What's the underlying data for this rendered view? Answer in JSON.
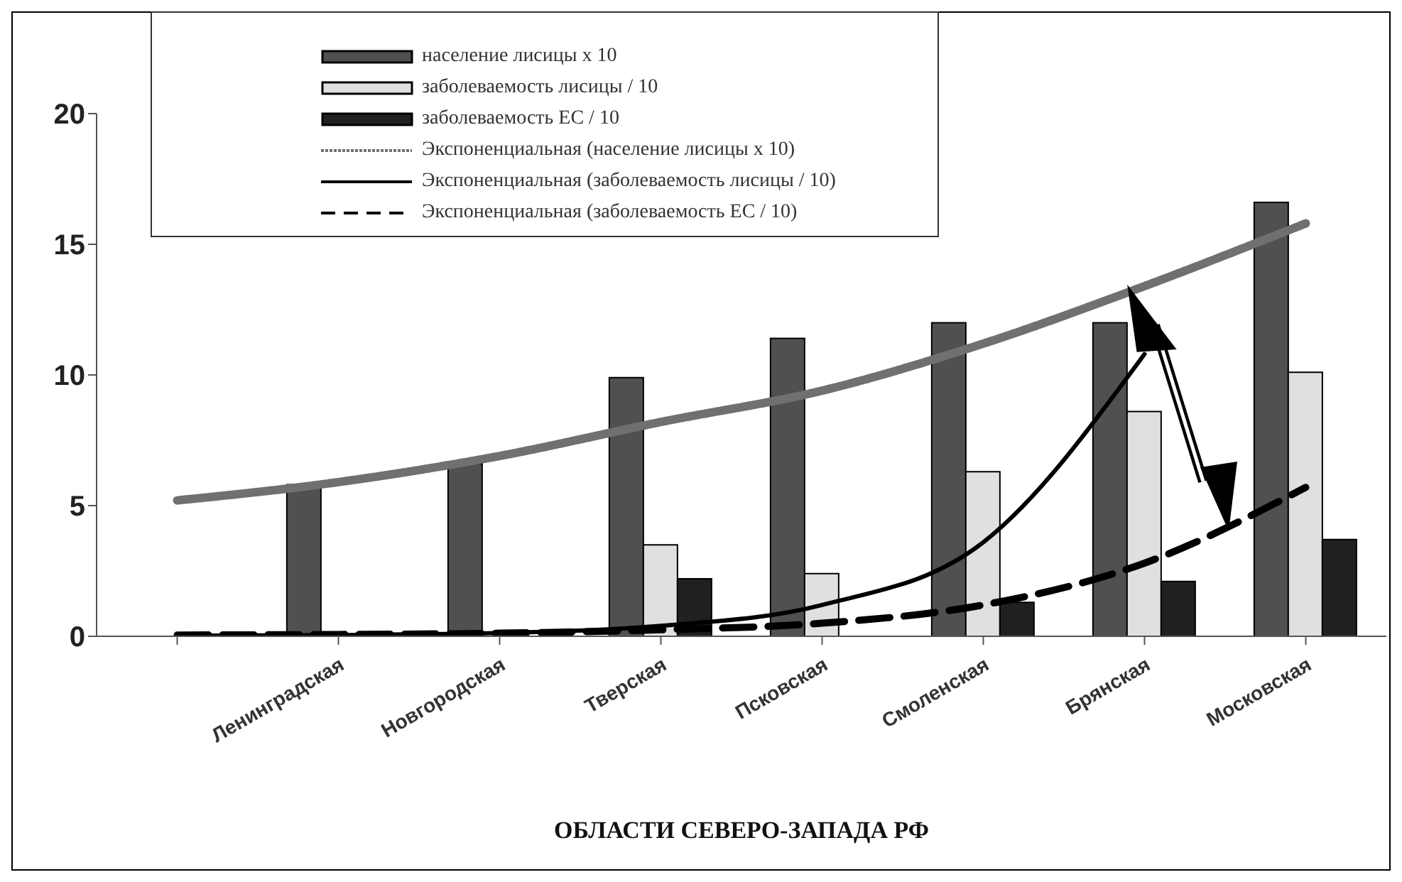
{
  "chart_data": {
    "type": "bar",
    "xlabel": "ОБЛАСТИ СЕВЕРО-ЗАПАДА РФ",
    "categories": [
      null,
      "Ленинградская",
      "Новгородская",
      "Тверская",
      "Псковская",
      "Смоленская",
      "Брянская",
      "Московская"
    ],
    "series": [
      {
        "name": "население лисицы х 10",
        "color": "#505050",
        "values": [
          null,
          5.8,
          6.6,
          9.9,
          11.4,
          12.0,
          12.0,
          16.6
        ]
      },
      {
        "name": "заболеваемость лисицы / 10",
        "color": "#e0e0e0",
        "values": [
          null,
          null,
          null,
          3.5,
          2.4,
          6.3,
          8.6,
          10.1
        ]
      },
      {
        "name": "заболеваемость ЕС / 10",
        "color": "#202020",
        "values": [
          null,
          null,
          null,
          2.2,
          null,
          1.3,
          2.1,
          3.7
        ]
      },
      {
        "name": "Экспоненциальная (население лисицы х 10)",
        "type": "line",
        "color": "#707070",
        "line_style": "dotted",
        "values": [
          5.2,
          5.9,
          6.9,
          8.2,
          9.4,
          11.2,
          13.4,
          15.8
        ]
      },
      {
        "name": "Экспоненциальная (заболеваемость лисицы / 10)",
        "type": "line",
        "color": "#000000",
        "line_style": "solid",
        "values": [
          0.02,
          0.05,
          0.13,
          0.4,
          1.2,
          3.6,
          10.8,
          null
        ]
      },
      {
        "name": "Экспоненциальная (заболеваемость ЕС / 10)",
        "type": "line",
        "color": "#000000",
        "line_style": "dashed",
        "values": [
          0.05,
          0.07,
          0.12,
          0.25,
          0.5,
          1.2,
          2.8,
          5.7
        ]
      }
    ],
    "ylim": [
      0,
      20
    ],
    "yticks": [
      0,
      5,
      10,
      15,
      20
    ],
    "legend": "top",
    "marker": "none"
  }
}
